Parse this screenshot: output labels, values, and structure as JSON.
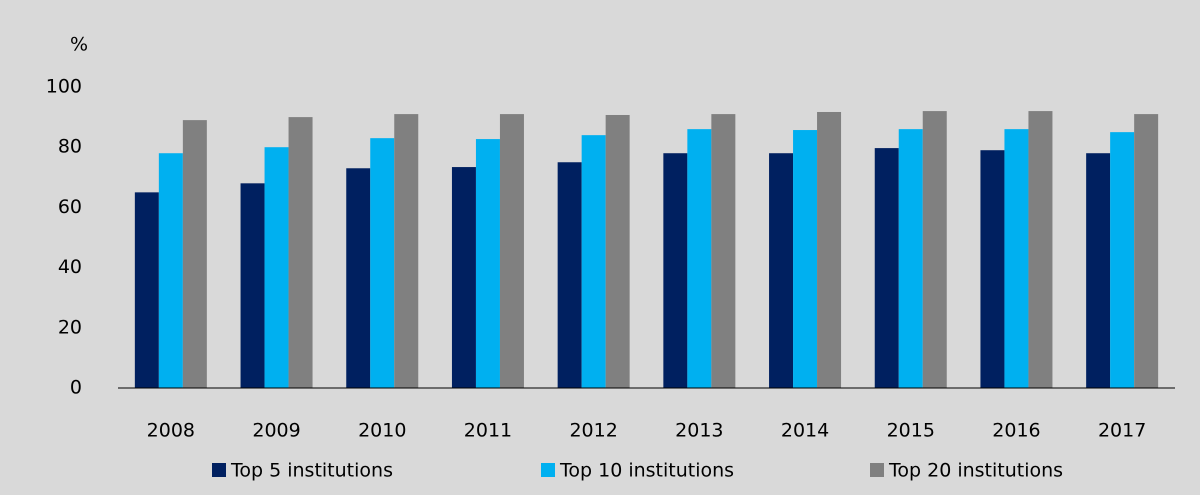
{
  "chart_data": {
    "type": "bar",
    "y_unit": "%",
    "categories": [
      "2008",
      "2009",
      "2010",
      "2011",
      "2012",
      "2013",
      "2014",
      "2015",
      "2016",
      "2017"
    ],
    "series": [
      {
        "name": "Top 5 institutions",
        "color": "#002060",
        "values": [
          65,
          68,
          73,
          73.4,
          75,
          78,
          78,
          79.7,
          79,
          78
        ]
      },
      {
        "name": "Top 10 institutions",
        "color": "#00b0f0",
        "values": [
          78,
          80,
          83,
          82.7,
          84,
          86,
          85.7,
          86,
          86,
          85
        ]
      },
      {
        "name": "Top 20 institutions",
        "color": "#808080",
        "values": [
          89,
          90,
          91,
          91,
          90.7,
          91,
          91.7,
          92,
          92,
          91
        ]
      }
    ],
    "ylim": [
      0,
      100
    ],
    "yticks": [
      0,
      20,
      40,
      60,
      80,
      100
    ],
    "grid": false,
    "legend": "bottom"
  }
}
